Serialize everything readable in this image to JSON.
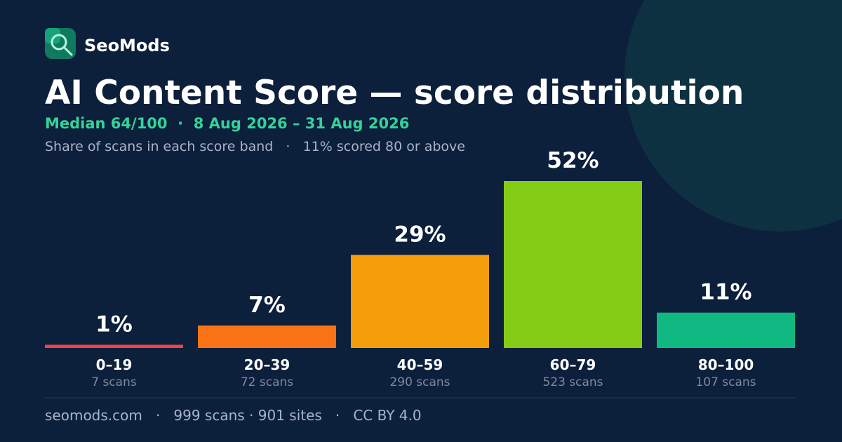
{
  "brand": "SeoMods",
  "chart_data": {
    "type": "bar",
    "title": "AI Content Score — score distribution",
    "subtitle": "Median 64/100  ·  8 Aug 2026 – 31 Aug 2026",
    "description": "Share of scans in each score band   ·   11% scored 80 or above",
    "categories": [
      "0–19",
      "20–39",
      "40–59",
      "60–79",
      "80–100"
    ],
    "values": [
      1,
      7,
      29,
      52,
      11
    ],
    "value_labels": [
      "1%",
      "7%",
      "29%",
      "52%",
      "11%"
    ],
    "category_notes": [
      "7 scans",
      "72 scans",
      "290 scans",
      "523 scans",
      "107 scans"
    ],
    "colors": [
      "#ef4444",
      "#f97316",
      "#f59e0b",
      "#84cc16",
      "#10b981"
    ]
  },
  "footer": "seomods.com   ·   999 scans · 901 sites   ·   CC BY 4.0"
}
